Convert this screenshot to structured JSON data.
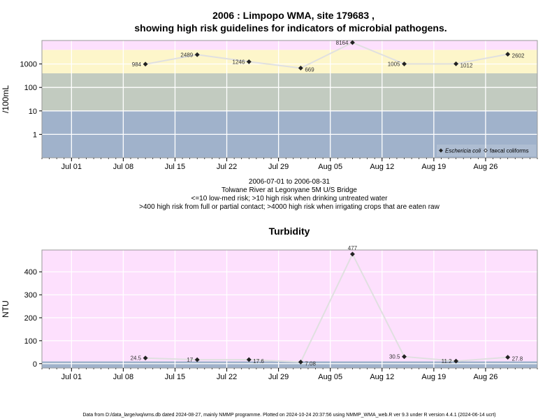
{
  "titles": {
    "main_line1": "2006 : Limpopo WMA, site 179683 ,",
    "main_line2": "showing high risk guidelines for indicators of microbial pathogens.",
    "caption_line1": "2006-07-01 to 2006-08-31",
    "caption_line2": "Tolwane River at Legonyane 5M U/S Bridge",
    "caption_line3": "<=10 low-med risk; >10 high risk when drinking untreated water",
    "caption_line4": ">400 high risk from full or partial contact; >4000 high risk when irrigating crops that are eaten raw",
    "turbidity_title": "Turbidity",
    "footer": "Data from D:/data_large/wq/wms.db dated 2024-08-27, mainly NMMP programme. Plotted on 2024-10-24 20:37:56 using NMMP_WMA_web.R ver 9.3 under R version 4.4.1 (2024-06-14 ucrt)"
  },
  "colors": {
    "band_low": "#a0b2cb",
    "band_mid": "#c2cbc0",
    "band_high": "#fdf6ca",
    "band_top": "#fde0fd",
    "turbidity_bg": "#fde0fd",
    "turbidity_low": "#a0b2cb",
    "grid": "#ffffff",
    "line": "#e0e0e0",
    "point": "#222222",
    "border": "#999999"
  },
  "chart_data": [
    {
      "type": "line",
      "name": "microbial",
      "ylabel": "/100mL",
      "yscale": "log",
      "ylim": [
        0.1,
        10000
      ],
      "yticks": [
        1,
        10,
        100,
        1000
      ],
      "ytick_labels": [
        "1",
        "10",
        "100",
        "1000"
      ],
      "xlim": [
        "2006-06-27",
        "2006-09-02"
      ],
      "xticks": [
        "2006-07-01",
        "2006-07-08",
        "2006-07-15",
        "2006-07-22",
        "2006-07-29",
        "2006-08-05",
        "2006-08-12",
        "2006-08-19",
        "2006-08-26"
      ],
      "xtick_labels": [
        "Jul 01",
        "Jul 08",
        "Jul 15",
        "Jul 22",
        "Jul 29",
        "Aug 05",
        "Aug 12",
        "Aug 19",
        "Aug 26"
      ],
      "bands": [
        {
          "from": 0.1,
          "to": 10,
          "color": "#a0b2cb"
        },
        {
          "from": 10,
          "to": 400,
          "color": "#c2cbc0"
        },
        {
          "from": 400,
          "to": 4000,
          "color": "#fdf6ca"
        },
        {
          "from": 4000,
          "to": 10000,
          "color": "#fde0fd"
        }
      ],
      "legend_position": "bottom-right",
      "series": [
        {
          "name": "Eschericia coli",
          "marker": "filled-diamond",
          "x": [
            "2006-07-11",
            "2006-07-18",
            "2006-07-25",
            "2006-08-01",
            "2006-08-08",
            "2006-08-15",
            "2006-08-22",
            "2006-08-29"
          ],
          "y": [
            984,
            2489,
            1246,
            669,
            8164,
            1005,
            1012,
            2602
          ],
          "labels": [
            "984",
            "2489",
            "1246",
            "669",
            "8164",
            "1005",
            "1012",
            "2602"
          ],
          "label_side": [
            "left",
            "left",
            "left",
            "right",
            "left",
            "left",
            "right",
            "right"
          ]
        },
        {
          "name": "faecal coliforms",
          "marker": "open-diamond",
          "x": [],
          "y": []
        }
      ]
    },
    {
      "type": "line",
      "name": "turbidity",
      "ylabel": "NTU",
      "yscale": "linear",
      "ylim": [
        -19,
        495
      ],
      "yticks": [
        0,
        100,
        200,
        300,
        400
      ],
      "ytick_labels": [
        "0",
        "100",
        "200",
        "300",
        "400"
      ],
      "xlim": [
        "2006-06-27",
        "2006-09-02"
      ],
      "xticks": [
        "2006-07-01",
        "2006-07-08",
        "2006-07-15",
        "2006-07-22",
        "2006-07-29",
        "2006-08-05",
        "2006-08-12",
        "2006-08-19",
        "2006-08-26"
      ],
      "xtick_labels": [
        "Jul 01",
        "Jul 08",
        "Jul 15",
        "Jul 22",
        "Jul 29",
        "Aug 05",
        "Aug 12",
        "Aug 19",
        "Aug 26"
      ],
      "bands": [
        {
          "from": -19,
          "to": 10,
          "color": "#a0b2cb"
        },
        {
          "from": 10,
          "to": 495,
          "color": "#fde0fd"
        }
      ],
      "series": [
        {
          "name": "Turbidity",
          "marker": "filled-diamond",
          "x": [
            "2006-07-11",
            "2006-07-18",
            "2006-07-25",
            "2006-08-01",
            "2006-08-08",
            "2006-08-15",
            "2006-08-22",
            "2006-08-29"
          ],
          "y": [
            24.5,
            17,
            17.6,
            7.08,
            477,
            30.5,
            11.2,
            27.8
          ],
          "labels": [
            "24.5",
            "17",
            "17.6",
            "7.08",
            "477",
            "30.5",
            "11.2",
            "27.8"
          ],
          "label_side": [
            "left",
            "left",
            "right",
            "right",
            "above",
            "left",
            "left",
            "right"
          ]
        }
      ]
    }
  ]
}
